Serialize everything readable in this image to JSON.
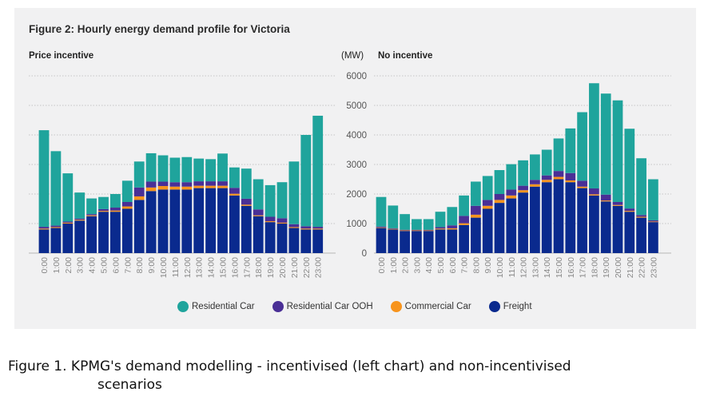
{
  "figure_title": "Figure 2: Hourly energy demand profile for Victoria",
  "caption_line1": "Figure 1. KPMG's demand modelling - incentivised (left chart) and non-incentivised",
  "caption_line2": "scenarios",
  "unit_label": "(MW)",
  "colors": {
    "Residential Car": "#1fa49c",
    "Residential Car OOH": "#4a2f96",
    "Commercial Car": "#f7941d",
    "Freight": "#0a2a8e",
    "grid": "#b7b7b7",
    "tick": "#888888"
  },
  "chart_data": [
    {
      "type": "bar",
      "stacked": true,
      "title": "Price incentive",
      "categories": [
        "0:00",
        "1:00",
        "2:00",
        "3:00",
        "4:00",
        "5:00",
        "6:00",
        "7:00",
        "8:00",
        "9:00",
        "10:00",
        "11:00",
        "12:00",
        "13:00",
        "14:00",
        "15:00",
        "16:00",
        "17:00",
        "18:00",
        "19:00",
        "20:00",
        "21:00",
        "22:00",
        "23:00"
      ],
      "ylim": [
        0,
        6000
      ],
      "grid": true,
      "series": [
        {
          "name": "Freight",
          "values": [
            800,
            850,
            1000,
            1100,
            1250,
            1400,
            1400,
            1500,
            1800,
            2100,
            2150,
            2150,
            2150,
            2200,
            2200,
            2200,
            1950,
            1600,
            1250,
            1050,
            1000,
            850,
            800,
            800
          ]
        },
        {
          "name": "Commercial Car",
          "values": [
            30,
            30,
            30,
            30,
            30,
            30,
            40,
            80,
            120,
            120,
            120,
            100,
            100,
            80,
            80,
            80,
            60,
            40,
            30,
            30,
            30,
            30,
            30,
            30
          ]
        },
        {
          "name": "Residential Car OOH",
          "values": [
            60,
            50,
            40,
            40,
            40,
            60,
            100,
            150,
            300,
            200,
            150,
            150,
            150,
            150,
            150,
            150,
            200,
            200,
            200,
            150,
            150,
            100,
            80,
            60
          ]
        },
        {
          "name": "Residential Car",
          "values": [
            3270,
            2520,
            1630,
            880,
            530,
            410,
            460,
            720,
            880,
            960,
            890,
            830,
            850,
            770,
            750,
            940,
            690,
            1020,
            1020,
            1070,
            1220,
            2120,
            3090,
            3760
          ]
        }
      ],
      "legend": "bottom"
    },
    {
      "type": "bar",
      "stacked": true,
      "title": "No incentive",
      "categories": [
        "0:00",
        "1:00",
        "2:00",
        "3:00",
        "4:00",
        "5:00",
        "6:00",
        "7:00",
        "8:00",
        "9:00",
        "10:00",
        "11:00",
        "12:00",
        "13:00",
        "14:00",
        "15:00",
        "16:00",
        "17:00",
        "18:00",
        "19:00",
        "20:00",
        "21:00",
        "22:00",
        "23:00"
      ],
      "ylim": [
        0,
        6000
      ],
      "yticks": [
        0,
        1000,
        2000,
        3000,
        4000,
        5000,
        6000
      ],
      "grid": true,
      "series": [
        {
          "name": "Freight",
          "values": [
            850,
            800,
            750,
            750,
            750,
            800,
            800,
            950,
            1200,
            1500,
            1700,
            1850,
            2050,
            2250,
            2400,
            2500,
            2400,
            2200,
            1950,
            1750,
            1600,
            1400,
            1200,
            1050
          ]
        },
        {
          "name": "Commercial Car",
          "values": [
            20,
            20,
            20,
            20,
            20,
            30,
            40,
            60,
            100,
            100,
            100,
            100,
            80,
            80,
            80,
            80,
            60,
            50,
            40,
            30,
            30,
            30,
            30,
            20
          ]
        },
        {
          "name": "Residential Car OOH",
          "values": [
            30,
            20,
            20,
            20,
            20,
            50,
            100,
            250,
            300,
            200,
            200,
            200,
            150,
            150,
            150,
            200,
            250,
            200,
            200,
            200,
            100,
            80,
            60,
            40
          ]
        },
        {
          "name": "Residential Car",
          "values": [
            1000,
            770,
            530,
            360,
            360,
            520,
            620,
            690,
            820,
            810,
            810,
            860,
            860,
            860,
            870,
            1100,
            1510,
            2320,
            3560,
            3420,
            3440,
            2700,
            1920,
            1390
          ]
        }
      ],
      "legend": "bottom"
    }
  ]
}
